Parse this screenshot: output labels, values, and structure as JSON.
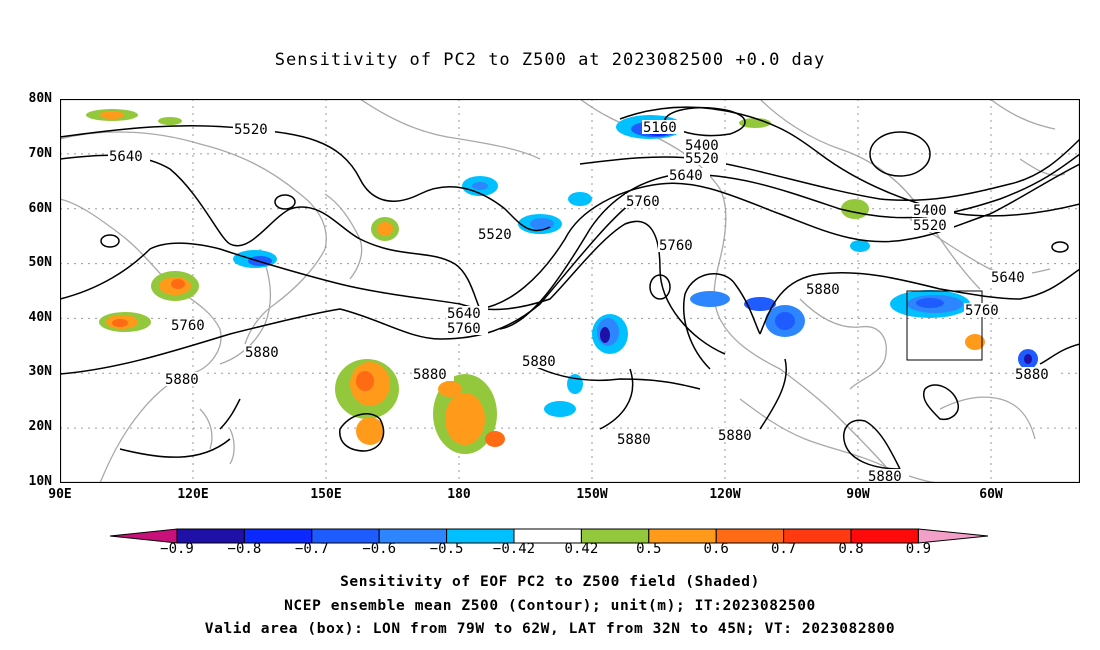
{
  "title": "Sensitivity of PC2 to Z500 at 2023082500 +0.0 day",
  "lat_labels": [
    "80N",
    "70N",
    "60N",
    "50N",
    "40N",
    "30N",
    "20N",
    "10N"
  ],
  "lon_labels": [
    "90E",
    "120E",
    "150E",
    "180",
    "150W",
    "120W",
    "90W",
    "60W"
  ],
  "contour_labels": [
    "5520",
    "5640",
    "5160",
    "5400",
    "5520",
    "5640",
    "5760",
    "5400",
    "5520",
    "5640",
    "5760",
    "5640",
    "5760",
    "5760",
    "5880",
    "5880",
    "5880",
    "5880",
    "5880",
    "5880",
    "5880",
    "5880",
    "5760",
    "5880",
    "5520"
  ],
  "colorbar": {
    "ticks": [
      "−0.9",
      "−0.8",
      "−0.7",
      "−0.6",
      "−0.5",
      "−0.42",
      "0.42",
      "0.5",
      "0.6",
      "0.7",
      "0.8",
      "0.9"
    ],
    "colors": [
      "#1f10a8",
      "#0a28ff",
      "#1e5cff",
      "#2e86ff",
      "#00c0ff",
      "#ffffff",
      "#94c83c",
      "#ff9a1a",
      "#ff6a14",
      "#ff3a10",
      "#ff0a0a"
    ],
    "low_end_color": "#c8107a",
    "high_end_color": "#f3a0c8"
  },
  "footer": {
    "line1": "Sensitivity of EOF PC2 to Z500 field (Shaded)",
    "line2": "NCEP ensemble mean Z500 (Contour); unit(m); IT:2023082500",
    "line3": "Valid area (box): LON from 79W to 62W, LAT from 32N to 45N; VT: 2023082800"
  }
}
